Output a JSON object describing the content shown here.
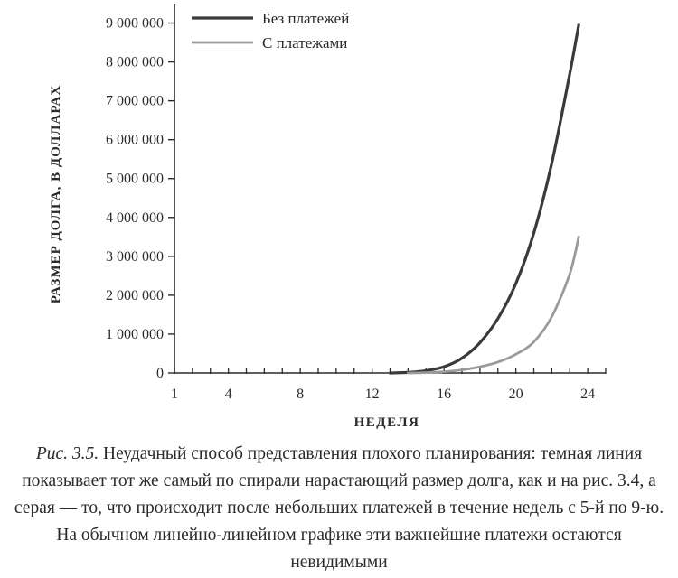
{
  "chart_data": {
    "type": "line",
    "title": "",
    "xlabel": "НЕДЕЛЯ",
    "ylabel": "РАЗМЕР ДОЛГА, В ДОЛЛАРАХ",
    "xlim": [
      1,
      25
    ],
    "ylim": [
      0,
      9500000
    ],
    "x_ticks": [
      1,
      4,
      8,
      12,
      16,
      20,
      24
    ],
    "y_ticks": [
      0,
      1000000,
      2000000,
      3000000,
      4000000,
      5000000,
      6000000,
      7000000,
      8000000,
      9000000
    ],
    "y_tick_labels": [
      "0",
      "1 000 000",
      "2 000 000",
      "3 000 000",
      "4 000 000",
      "5 000 000",
      "6 000 000",
      "7 000 000",
      "8 000 000",
      "9 000 000"
    ],
    "grid": false,
    "legend_position": "top-left",
    "series": [
      {
        "name": "Без платежей",
        "color": "#3a3a3a",
        "x": [
          13,
          14,
          15,
          16,
          17,
          18,
          19,
          20,
          21,
          22,
          23,
          23.5
        ],
        "y": [
          0,
          15000,
          60000,
          160000,
          380000,
          780000,
          1400000,
          2300000,
          3600000,
          5400000,
          7700000,
          8950000
        ]
      },
      {
        "name": "С платежами",
        "color": "#9a9a9a",
        "x": [
          14,
          15,
          16,
          17,
          18,
          19,
          20,
          21,
          22,
          23,
          23.5
        ],
        "y": [
          0,
          10000,
          30000,
          80000,
          160000,
          280000,
          480000,
          800000,
          1450000,
          2550000,
          3500000
        ]
      }
    ]
  },
  "caption": {
    "figure_ref": "Рис. 3.5.",
    "text": "Неудачный способ представления плохого планирования: темная линия показывает тот же самый по спирали нарастающий размер долга, как и на рис. 3.4, а серая — то, что происходит после небольших платежей в течение недель с 5-й по 9-ю. На обычном линейно-линейном графике эти важнейшие платежи остаются невидимыми"
  }
}
